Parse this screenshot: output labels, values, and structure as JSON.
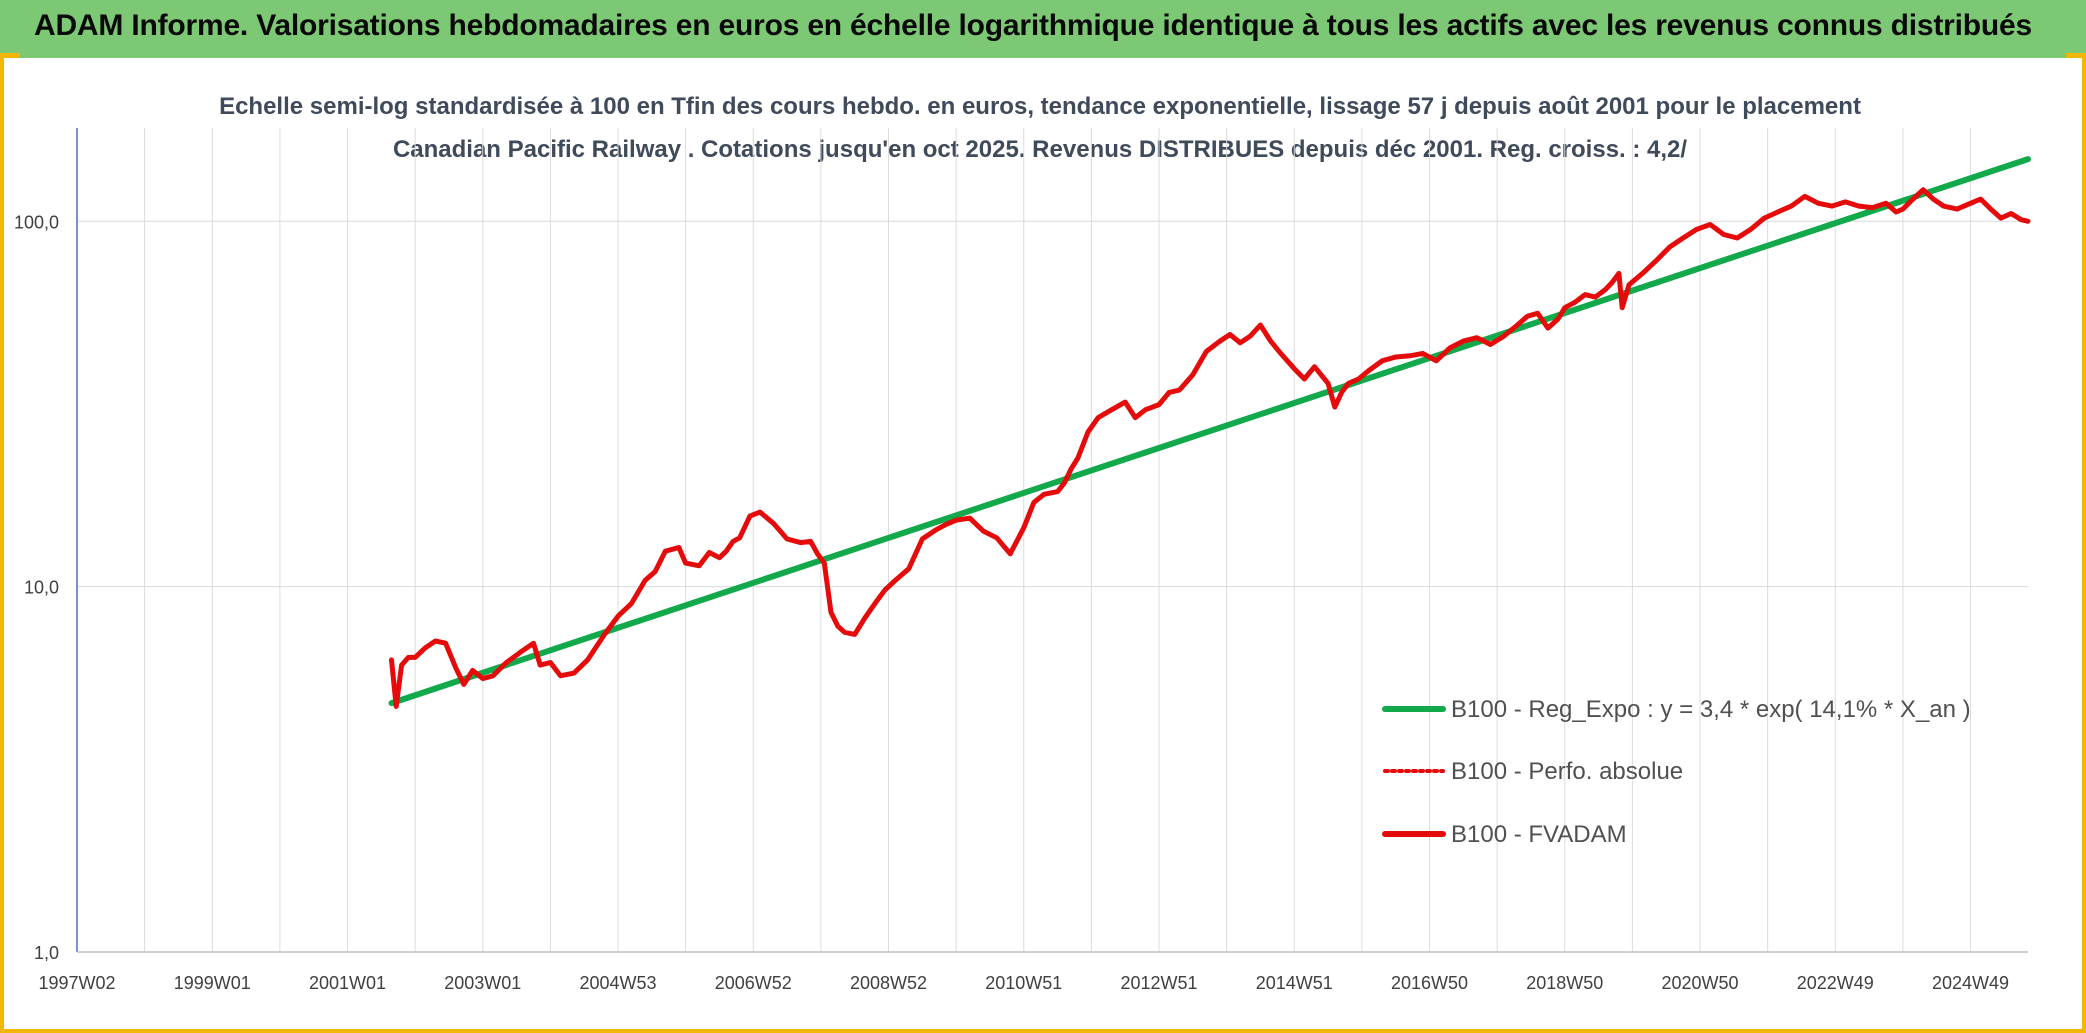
{
  "header": {
    "title": "ADAM Informe. Valorisations hebdomadaires en euros en échelle logarithmique identique à tous les actifs avec les revenus connus distribués"
  },
  "colors": {
    "banner": "#7dc874",
    "accent_border": "#f2b705",
    "trend_line": "#12a84c",
    "fvadam_line": "#e50b0b",
    "perf_line": "#e50b0b"
  },
  "chart_data": {
    "type": "line",
    "title": "Echelle semi-log standardisée à 100 en Tfin des cours hebdo. en euros, tendance exponentielle, lissage 57 j depuis août 2001 pour le placement Canadian Pacific Railway . Cotations jusqu'en oct 2025. Revenus DISTRIBUES depuis déc 2001. Reg. croiss. : 4,2/",
    "xlabel": "",
    "ylabel": "",
    "y_scale": "log",
    "ylim": [
      1,
      180
    ],
    "xlim": [
      1997.0,
      2025.85
    ],
    "grid": true,
    "legend_position": "right",
    "y_ticks": [
      1,
      10,
      100
    ],
    "y_tick_labels": [
      "1,0",
      "10,0",
      "100,0"
    ],
    "x_ticks": [
      1997.0,
      1999.0,
      2001.0,
      2003.0,
      2005.0,
      2007.0,
      2009.0,
      2011.0,
      2013.0,
      2015.0,
      2017.0,
      2019.0,
      2021.0,
      2023.0,
      2025.0
    ],
    "x_tick_labels": [
      "1997W02",
      "1999W01",
      "2001W01",
      "2003W01",
      "2004W53",
      "2006W52",
      "2008W52",
      "2010W51",
      "2012W51",
      "2014W51",
      "2016W50",
      "2018W50",
      "2020W50",
      "2022W49",
      "2024W49"
    ],
    "series": [
      {
        "name": "B100 - Reg_Expo : y = 3,4 * exp( 14,1% * X_an )",
        "style": "solid",
        "x": [
          2001.65,
          2025.85
        ],
        "y": [
          4.8,
          148
        ]
      },
      {
        "name": "B100 - Perfo. absolue",
        "style": "dotted",
        "x": [],
        "y": []
      },
      {
        "name": "B100 - FVADAM",
        "style": "solid",
        "x": [
          2001.65,
          2001.72,
          2001.8,
          2001.9,
          2002.0,
          2002.15,
          2002.3,
          2002.45,
          2002.6,
          2002.72,
          2002.85,
          2003.0,
          2003.15,
          2003.35,
          2003.55,
          2003.75,
          2003.85,
          2004.0,
          2004.15,
          2004.35,
          2004.55,
          2004.8,
          2005.0,
          2005.2,
          2005.4,
          2005.55,
          2005.7,
          2005.9,
          2006.0,
          2006.2,
          2006.35,
          2006.5,
          2006.6,
          2006.7,
          2006.8,
          2006.95,
          2007.1,
          2007.3,
          2007.5,
          2007.7,
          2007.85,
          2007.95,
          2008.05,
          2008.15,
          2008.25,
          2008.35,
          2008.5,
          2008.65,
          2008.8,
          2008.95,
          2009.1,
          2009.3,
          2009.5,
          2009.7,
          2009.85,
          2010.0,
          2010.2,
          2010.4,
          2010.6,
          2010.8,
          2011.0,
          2011.15,
          2011.3,
          2011.5,
          2011.6,
          2011.7,
          2011.8,
          2011.95,
          2012.1,
          2012.3,
          2012.5,
          2012.65,
          2012.8,
          2013.0,
          2013.15,
          2013.3,
          2013.5,
          2013.7,
          2013.9,
          2014.05,
          2014.2,
          2014.35,
          2014.5,
          2014.65,
          2014.8,
          2015.0,
          2015.15,
          2015.3,
          2015.5,
          2015.6,
          2015.7,
          2015.8,
          2015.95,
          2016.1,
          2016.3,
          2016.5,
          2016.7,
          2016.9,
          2017.1,
          2017.3,
          2017.5,
          2017.7,
          2017.9,
          2018.1,
          2018.3,
          2018.45,
          2018.6,
          2018.75,
          2018.9,
          2019.0,
          2019.15,
          2019.3,
          2019.45,
          2019.6,
          2019.7,
          2019.8,
          2019.85,
          2019.95,
          2020.15,
          2020.35,
          2020.55,
          2020.75,
          2020.95,
          2021.15,
          2021.35,
          2021.55,
          2021.75,
          2021.95,
          2022.15,
          2022.35,
          2022.55,
          2022.75,
          2022.95,
          2023.15,
          2023.35,
          2023.55,
          2023.75,
          2023.9,
          2024.0,
          2024.15,
          2024.3,
          2024.45,
          2024.6,
          2024.8,
          2025.0,
          2025.15,
          2025.3,
          2025.45,
          2025.6,
          2025.75,
          2025.85
        ],
        "y": [
          6.3,
          4.7,
          6.1,
          6.4,
          6.4,
          6.8,
          7.1,
          7.0,
          6.0,
          5.4,
          5.9,
          5.6,
          5.7,
          6.2,
          6.6,
          7.0,
          6.1,
          6.2,
          5.7,
          5.8,
          6.3,
          7.4,
          8.3,
          9.0,
          10.4,
          11.0,
          12.5,
          12.8,
          11.6,
          11.4,
          12.4,
          12.0,
          12.5,
          13.3,
          13.6,
          15.6,
          16.0,
          14.9,
          13.5,
          13.2,
          13.3,
          12.3,
          11.6,
          8.5,
          7.8,
          7.5,
          7.4,
          8.2,
          9.0,
          9.8,
          10.4,
          11.2,
          13.5,
          14.3,
          14.8,
          15.2,
          15.4,
          14.2,
          13.6,
          12.3,
          14.5,
          17.0,
          17.9,
          18.2,
          19.2,
          21.0,
          22.5,
          26.5,
          29.0,
          30.5,
          32.0,
          29.0,
          30.5,
          31.5,
          34.0,
          34.5,
          38.0,
          44.0,
          47.0,
          49.0,
          46.5,
          48.5,
          52.0,
          47.0,
          43.5,
          39.5,
          37.0,
          40.0,
          36.0,
          31.0,
          34.0,
          36.0,
          37.0,
          39.0,
          41.5,
          42.5,
          42.8,
          43.5,
          41.5,
          45.0,
          47.0,
          48.0,
          46.0,
          48.5,
          52.0,
          55.0,
          56.0,
          51.0,
          54.0,
          58.0,
          60.0,
          63.0,
          62.0,
          65.0,
          68.0,
          72.0,
          58.0,
          67.0,
          72.0,
          78.0,
          85.0,
          90.0,
          95.0,
          98.0,
          92.0,
          90.0,
          95.0,
          102.0,
          106.0,
          110.0,
          117.0,
          112.0,
          110.0,
          113.0,
          110.0,
          109.0,
          112.0,
          106.0,
          108.0,
          115.0,
          122.0,
          115.0,
          110.0,
          108.0,
          112.0,
          115.0,
          108.0,
          102.0,
          105.0,
          101.0,
          100.0
        ]
      }
    ]
  }
}
